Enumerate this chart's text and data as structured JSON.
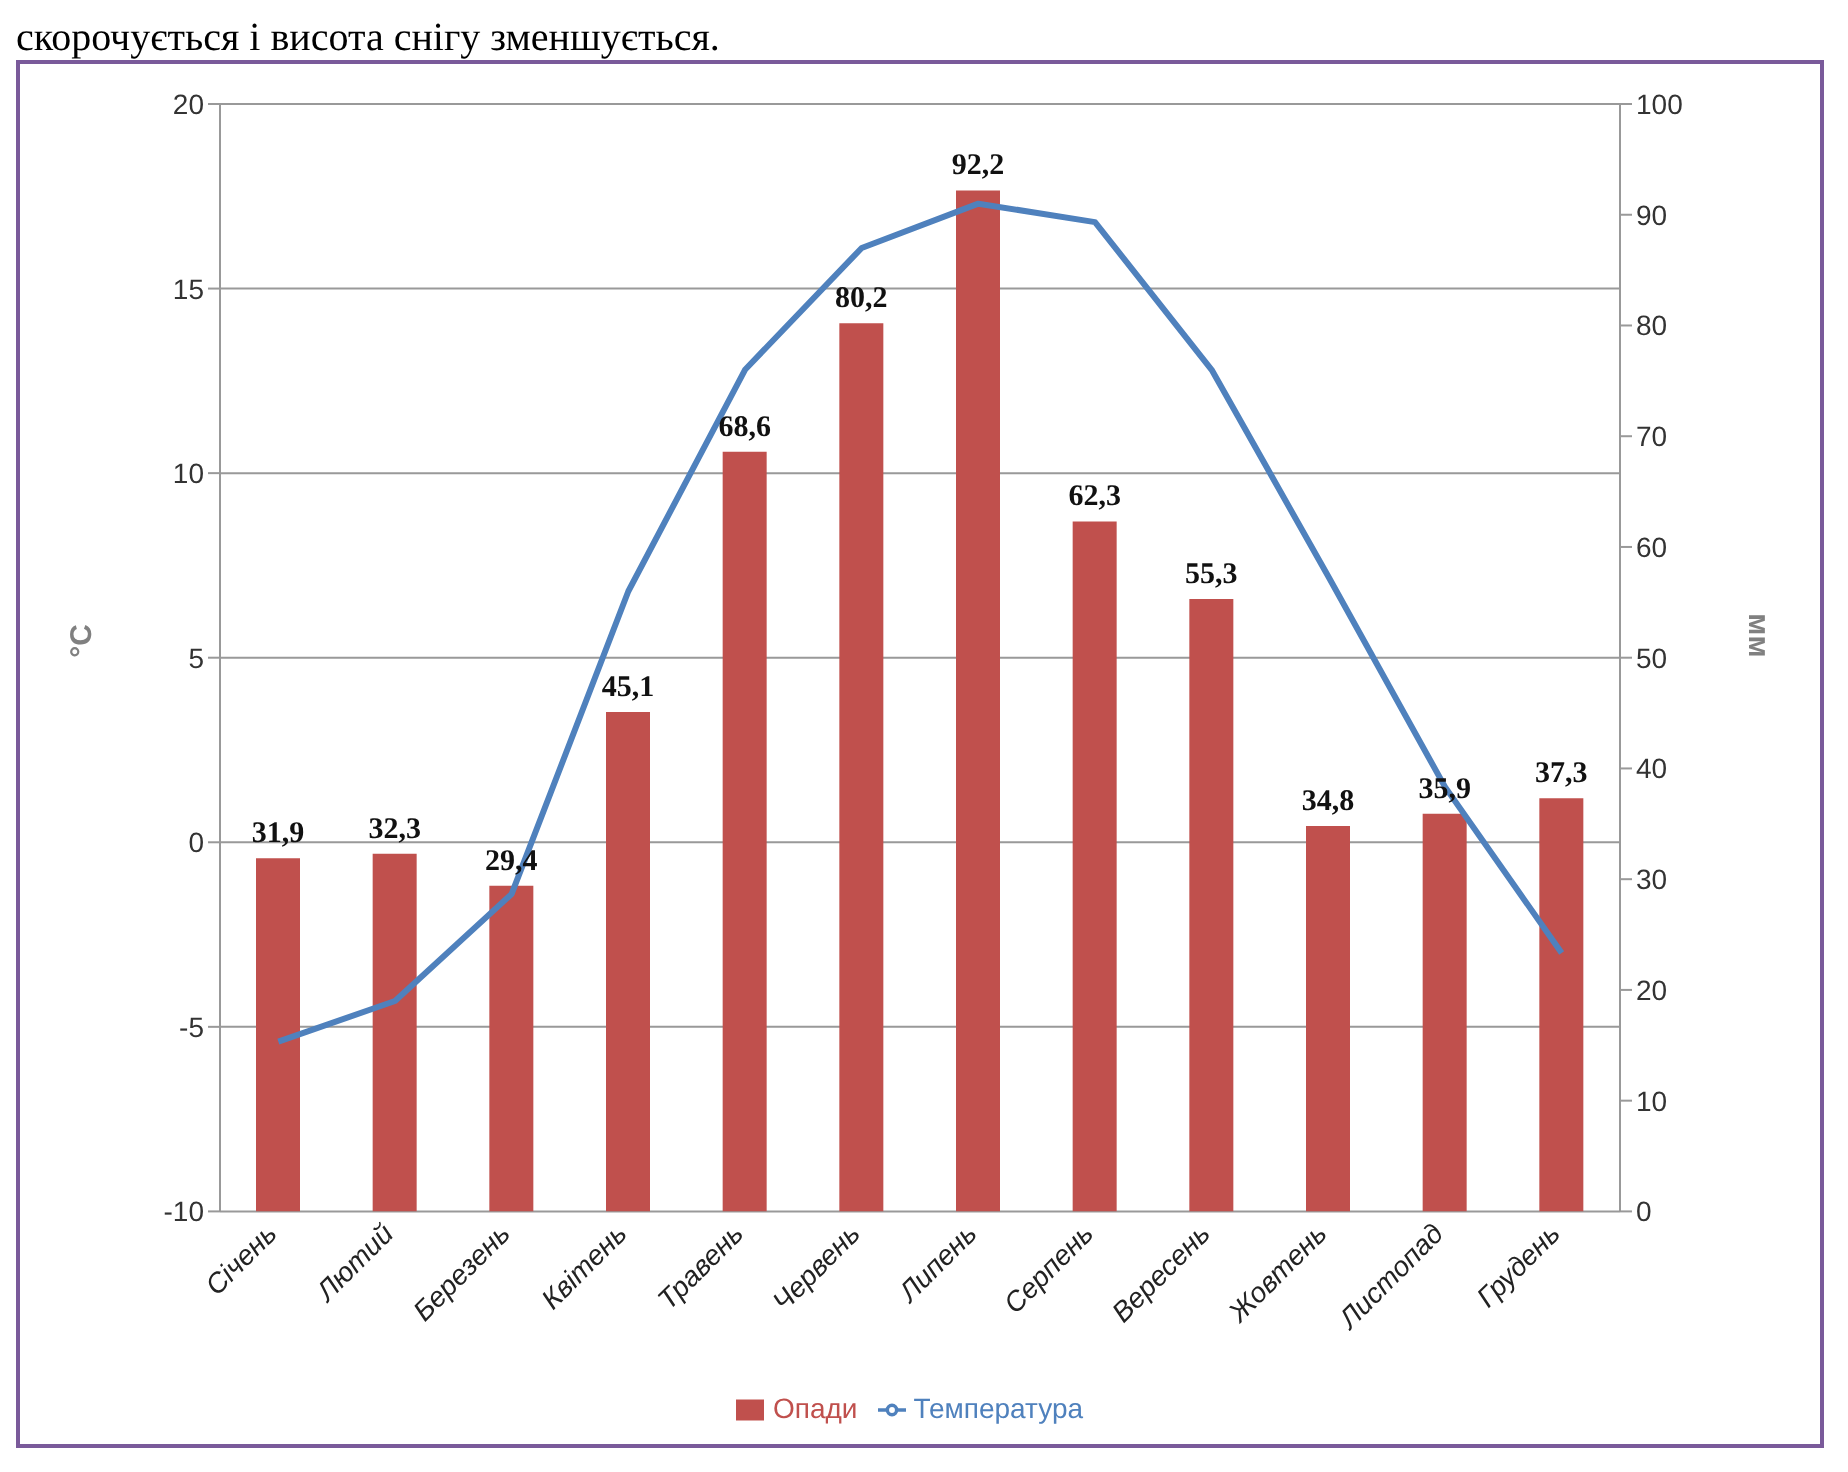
{
  "chart_data": {
    "type": "bar",
    "annotations": [
      "скорочується і висота снігу зменшується."
    ],
    "categories": [
      "Січень",
      "Лютий",
      "Березень",
      "Квітень",
      "Травень",
      "Червень",
      "Липень",
      "Серпень",
      "Вересень",
      "Жовтень",
      "Листопад",
      "Грудень"
    ],
    "series": [
      {
        "name": "Опади",
        "axis": "y2",
        "color": "#c0504d",
        "values": [
          31.9,
          32.3,
          29.4,
          45.1,
          68.6,
          80.2,
          92.2,
          62.3,
          55.3,
          34.8,
          35.9,
          37.3
        ],
        "value_labels": [
          "31,9",
          "32,3",
          "29,4",
          "45,1",
          "68,6",
          "80,2",
          "92,2",
          "62,3",
          "55,3",
          "34,8",
          "35,9",
          "37,3"
        ]
      },
      {
        "name": "Температура",
        "type": "line",
        "color": "#4f81bd",
        "values": [
          -5.4,
          -4.3,
          -1.4,
          6.8,
          12.8,
          16.1,
          17.3,
          16.8,
          12.8,
          7.2,
          1.5,
          -3.0
        ]
      }
    ],
    "ylabel": "°C",
    "y2label": "мм",
    "ylim": [
      -10,
      20
    ],
    "yticks": [
      -10,
      -5,
      0,
      5,
      10,
      15,
      20
    ],
    "y2lim": [
      0,
      100
    ],
    "y2ticks": [
      0,
      10,
      20,
      30,
      40,
      50,
      60,
      70,
      80,
      90,
      100
    ],
    "grid": "y",
    "legend": "bottom",
    "marker": "none",
    "line_style": "solid"
  }
}
